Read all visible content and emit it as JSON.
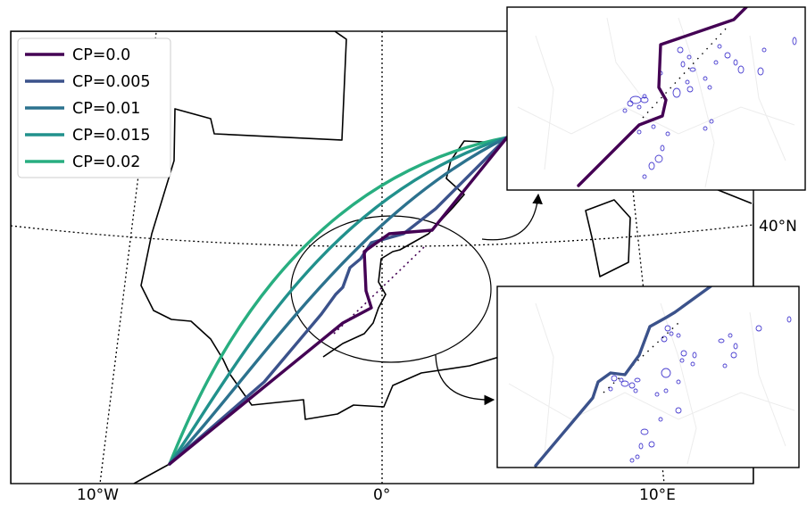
{
  "map": {
    "graticule_labels": {
      "lat_40n": "40°N",
      "lon_10w": "10°W",
      "lon_0": "0°",
      "lon_10e": "10°E"
    },
    "legend": [
      {
        "label": "CP=0.0",
        "color": "#440154"
      },
      {
        "label": "CP=0.005",
        "color": "#3b528b"
      },
      {
        "label": "CP=0.01",
        "color": "#2c728e"
      },
      {
        "label": "CP=0.015",
        "color": "#21918c"
      },
      {
        "label": "CP=0.02",
        "color": "#28ae80"
      }
    ],
    "insets": [
      {
        "name": "top",
        "route_color": "#440154"
      },
      {
        "name": "bottom",
        "route_color": "#3b528b"
      }
    ]
  }
}
